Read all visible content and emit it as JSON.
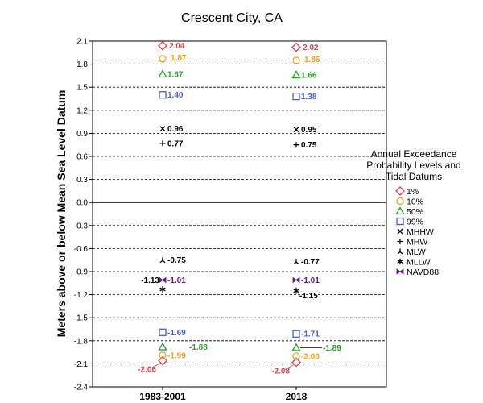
{
  "chart_data": {
    "type": "scatter",
    "title": "Crescent City, CA",
    "xlabel": "",
    "ylabel": "Meters above or below Mean Sea Level Datum",
    "ylim": [
      -2.4,
      2.1
    ],
    "yticks": [
      "2.1",
      "1.8",
      "1.5",
      "1.2",
      "0.9",
      "0.6",
      "0.3",
      "0.0",
      "-0.3",
      "-0.6",
      "-0.9",
      "-1.2",
      "-1.5",
      "-1.8",
      "-2.1",
      "-2.4"
    ],
    "categories": [
      "1983-2001",
      "2018"
    ],
    "grid": "dashed horizontal",
    "legend": {
      "title_lines": [
        "Annual Exceedance",
        "Probability Levels and",
        "Tidal Datums"
      ],
      "placement": "right"
    },
    "series": [
      {
        "name": "1%",
        "marker": "diamond",
        "color": "#e0404a",
        "values": [
          2.04,
          2.02
        ],
        "labels": [
          "2.04",
          "2.02"
        ],
        "low_values": [
          -2.06,
          -2.08
        ],
        "low_labels": [
          "-2.06",
          "-2.08"
        ]
      },
      {
        "name": "10%",
        "marker": "circle",
        "color": "#f5a020",
        "values": [
          1.87,
          1.85
        ],
        "labels": [
          "1.87",
          "1.85"
        ],
        "low_values": [
          -1.99,
          -2.0
        ],
        "low_labels": [
          "-1.99",
          "-2.00"
        ]
      },
      {
        "name": "50%",
        "marker": "triangle",
        "color": "#2ca02c",
        "values": [
          1.67,
          1.66
        ],
        "labels": [
          "1.67",
          "1.66"
        ],
        "low_values": [
          -1.88,
          -1.89
        ],
        "low_labels": [
          "-1.88",
          "-1.89"
        ]
      },
      {
        "name": "99%",
        "marker": "square",
        "color": "#4a5fd0",
        "values": [
          1.4,
          1.38
        ],
        "labels": [
          "1.40",
          "1.38"
        ],
        "low_values": [
          -1.69,
          -1.71
        ],
        "low_labels": [
          "-1.69",
          "-1.71"
        ]
      },
      {
        "name": "MHHW",
        "marker": "x",
        "color": "#000000",
        "values": [
          0.96,
          0.95
        ],
        "labels": [
          "0.96",
          "0.95"
        ]
      },
      {
        "name": "MHW",
        "marker": "plus",
        "color": "#000000",
        "values": [
          0.77,
          0.75
        ],
        "labels": [
          "0.77",
          "0.75"
        ]
      },
      {
        "name": "MLW",
        "marker": "tri",
        "color": "#000000",
        "values": [
          -0.75,
          -0.77
        ],
        "labels": [
          "-0.75",
          "-0.77"
        ]
      },
      {
        "name": "MLLW",
        "marker": "star",
        "color": "#000000",
        "values": [
          -1.13,
          -1.15
        ],
        "labels": [
          "-1.13",
          "-1.15"
        ]
      },
      {
        "name": "NAVD88",
        "marker": "bowtie",
        "color": "#5a1a78",
        "values": [
          -1.01,
          -1.01
        ],
        "labels": [
          "-1.01",
          "-1.01"
        ]
      }
    ]
  }
}
